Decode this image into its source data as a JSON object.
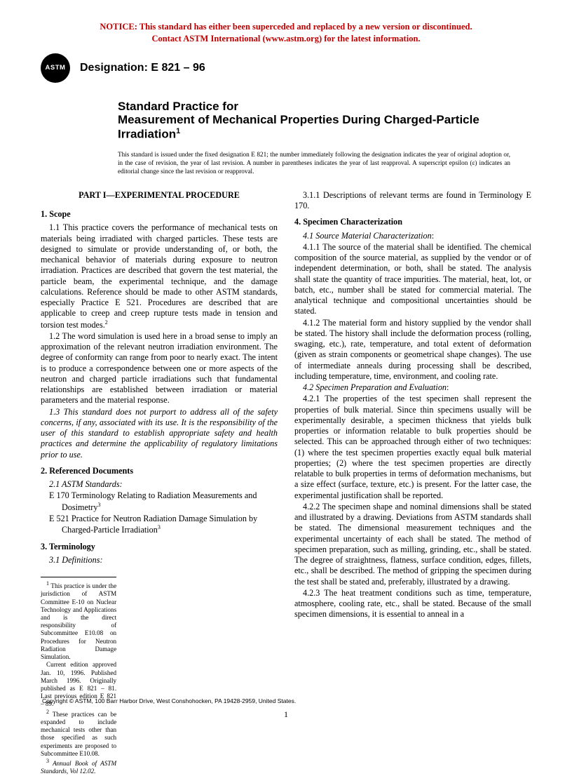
{
  "notice_line1": "NOTICE: This standard has either been superceded and replaced by a new version or discontinued.",
  "notice_line2": "Contact ASTM International (www.astm.org) for the latest information.",
  "logo_text": "ASTM",
  "designation": "Designation: E 821 – 96",
  "title_line1": "Standard Practice for",
  "title_line2": "Measurement of Mechanical Properties During Charged-Particle Irradiation",
  "title_super": "1",
  "issuance": "This standard is issued under the fixed designation E 821; the number immediately following the designation indicates the year of original adoption or, in the case of revision, the year of last revision. A number in parentheses indicates the year of last reapproval. A superscript epsilon (ε) indicates an editorial change since the last revision or reapproval.",
  "part_heading": "PART I—EXPERIMENTAL PROCEDURE",
  "scope_heading": "1.  Scope",
  "scope_1_1": "1.1 This practice covers the performance of mechanical tests on materials being irradiated with charged particles. These tests are designed to simulate or provide understanding of, or both, the mechanical behavior of materials during exposure to neutron irradiation. Practices are described that govern the test material, the particle beam, the experimental technique, and the damage calculations. Reference should be made to other ASTM standards, especially Practice E 521. Procedures are described that are applicable to creep and creep rupture tests made in tension and torsion test modes.",
  "scope_1_2": "1.2 The word simulation is used here in a broad sense to imply an approximation of the relevant neutron irradiation environment. The degree of conformity can range from poor to nearly exact. The intent is to produce a correspondence between one or more aspects of the neutron and charged particle irradiations such that fundamental relationships are established between irradiation or material parameters and the material response.",
  "scope_1_3": "1.3 This standard does not purport to address all of the safety concerns, if any, associated with its use. It is the responsibility of the user of this standard to establish appropriate safety and health practices and determine the applicability of regulatory limitations prior to use.",
  "ref_heading": "2.  Referenced Documents",
  "ref_2_1": "2.1 ASTM Standards:",
  "ref_e170": "E 170 Terminology Relating to Radiation Measurements and Dosimetry",
  "ref_e521": "E 521 Practice for Neutron Radiation Damage Simulation by Charged-Particle Irradiation",
  "term_heading": "3.  Terminology",
  "term_3_1": "3.1 Definitions:",
  "term_3_1_1": "3.1.1 Descriptions of relevant terms are found in Terminology E 170.",
  "spec_heading": "4.  Specimen Characterization",
  "spec_4_1": "4.1 Source Material Characterization",
  "spec_4_1_1": "4.1.1 The source of the material shall be identified. The chemical composition of the source material, as supplied by the vendor or of independent determination, or both, shall be stated. The analysis shall state the quantity of trace impurities. The material, heat, lot, or batch, etc., number shall be stated for commercial material. The analytical technique and compositional uncertainties should be stated.",
  "spec_4_1_2": "4.1.2 The material form and history supplied by the vendor shall be stated. The history shall include the deformation process (rolling, swaging, etc.), rate, temperature, and total extent of deformation (given as strain components or geometrical shape changes). The use of intermediate anneals during processing shall be described, including temperature, time, environment, and cooling rate.",
  "spec_4_2": "4.2 Specimen Preparation and Evaluation",
  "spec_4_2_1": "4.2.1 The properties of the test specimen shall represent the properties of bulk material. Since thin specimens usually will be experimentally desirable, a specimen thickness that yields bulk properties or information relatable to bulk properties should be selected. This can be approached through either of two techniques: (1) where the test specimen properties exactly equal bulk material properties; (2) where the test specimen properties are directly relatable to bulk properties in terms of deformation mechanisms, but a size effect (surface, texture, etc.) is present. For the latter case, the experimental justification shall be reported.",
  "spec_4_2_2": "4.2.2 The specimen shape and nominal dimensions shall be stated and illustrated by a drawing. Deviations from ASTM standards shall be stated. The dimensional measurement techniques and the experimental uncertainty of each shall be stated. The method of specimen preparation, such as milling, grinding, etc., shall be stated. The degree of straightness, flatness, surface condition, edges, fillets, etc., shall be described. The method of gripping the specimen during the test shall be stated and, preferably, illustrated by a drawing.",
  "spec_4_2_3": "4.2.3 The heat treatment conditions such as time, temperature, atmosphere, cooling rate, etc., shall be stated. Because of the small specimen dimensions, it is essential to anneal in a",
  "fn1": " This practice is under the jurisdiction of ASTM Committee E-10 on Nuclear Technology and Applications and is the direct responsibility of Subcommittee E10.08 on Procedures for Neutron Radiation Damage Simulation.",
  "fn1b": "Current edition approved Jan. 10, 1996. Published March 1996. Originally published as E 821 – 81. Last previous edition E 821 – 89.",
  "fn2": " These practices can be expanded to include mechanical tests other than those specified as such experiments are proposed to Subcommittee E10.08.",
  "fn3": " Annual Book of ASTM Standards, Vol 12.02.",
  "copyright": "Copyright © ASTM, 100 Barr Harbor Drive, West Conshohocken, PA 19428-2959, United States.",
  "pagenum": "1"
}
